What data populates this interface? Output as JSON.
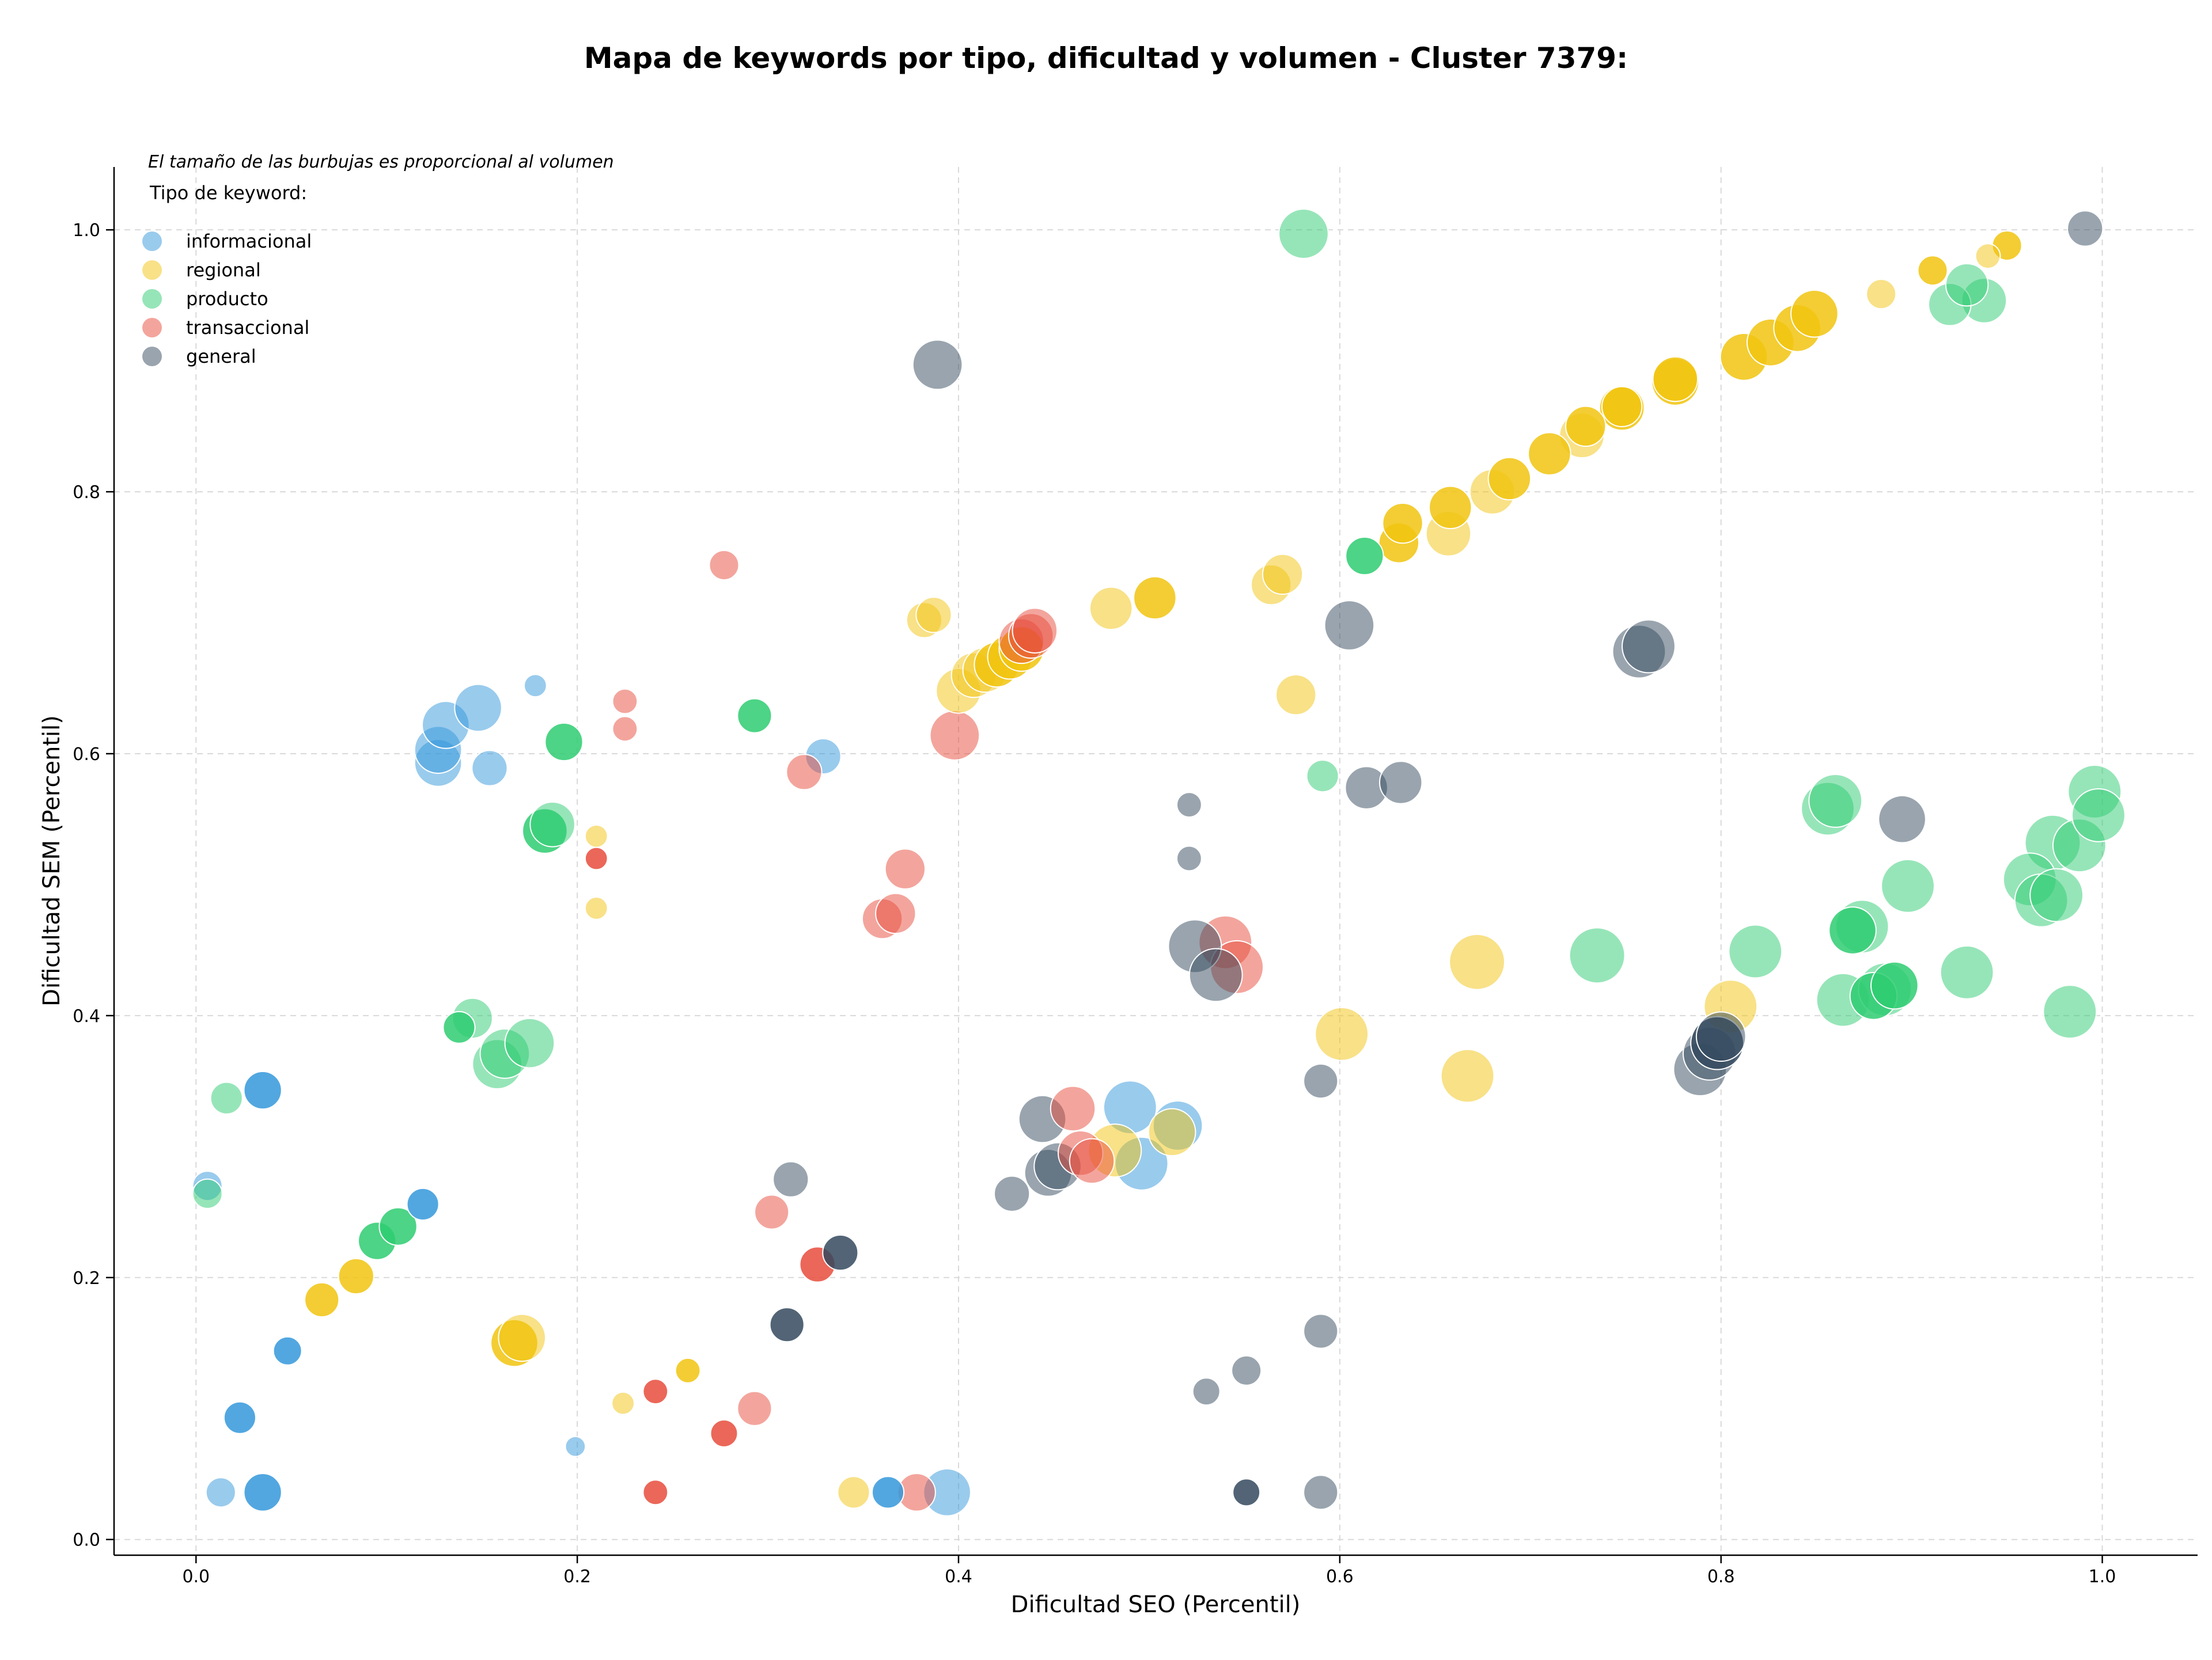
{
  "chart_data": {
    "type": "scatter",
    "title": "Mapa de keywords por tipo, dificultad y volumen - Cluster 7379:",
    "xlabel": "Dificultad SEO (Percentil)",
    "ylabel": "Dificultad SEM (Percentil)",
    "xlim": [
      -0.043,
      1.05
    ],
    "ylim": [
      -0.012,
      1.048
    ],
    "xticks": [
      "0.0",
      "0.2",
      "0.4",
      "0.6",
      "0.8",
      "1.0"
    ],
    "yticks": [
      "0.0",
      "0.2",
      "0.4",
      "0.6",
      "0.8",
      "1.0"
    ],
    "grid": true,
    "note": "El tamaño de las burbujas es proporcional al volumen",
    "legend_title": "Tipo de keyword:",
    "legend_position": "top-left",
    "series": [
      {
        "name": "informacional",
        "color": "#3498db",
        "points": [
          [
            0.006,
            0.27,
            25,
            0.5
          ],
          [
            0.013,
            0.036,
            25,
            0.5
          ],
          [
            0.023,
            0.093,
            27,
            0.85
          ],
          [
            0.035,
            0.036,
            32,
            0.85
          ],
          [
            0.035,
            0.343,
            32,
            0.85
          ],
          [
            0.048,
            0.144,
            24,
            0.85
          ],
          [
            0.119,
            0.256,
            27,
            0.85
          ],
          [
            0.127,
            0.593,
            40,
            0.5
          ],
          [
            0.127,
            0.603,
            40,
            0.5
          ],
          [
            0.131,
            0.622,
            40,
            0.5
          ],
          [
            0.148,
            0.635,
            40,
            0.5
          ],
          [
            0.154,
            0.589,
            30,
            0.5
          ],
          [
            0.178,
            0.652,
            19,
            0.5
          ],
          [
            0.199,
            0.071,
            17,
            0.5
          ],
          [
            0.329,
            0.598,
            30,
            0.5
          ],
          [
            0.363,
            0.036,
            27,
            0.85
          ],
          [
            0.394,
            0.036,
            40,
            0.5
          ],
          [
            0.49,
            0.33,
            45,
            0.5
          ],
          [
            0.496,
            0.287,
            45,
            0.5
          ],
          [
            0.515,
            0.316,
            42,
            0.5
          ]
        ]
      },
      {
        "name": "regional",
        "color": "#f1c40f",
        "points": [
          [
            0.066,
            0.183,
            29,
            0.85
          ],
          [
            0.084,
            0.201,
            30,
            0.85
          ],
          [
            0.167,
            0.15,
            40,
            0.85
          ],
          [
            0.171,
            0.154,
            40,
            0.5
          ],
          [
            0.21,
            0.537,
            19,
            0.5
          ],
          [
            0.21,
            0.482,
            19,
            0.5
          ],
          [
            0.224,
            0.104,
            19,
            0.5
          ],
          [
            0.258,
            0.129,
            21,
            0.85
          ],
          [
            0.345,
            0.036,
            27,
            0.5
          ],
          [
            0.382,
            0.702,
            30,
            0.5
          ],
          [
            0.387,
            0.706,
            30,
            0.5
          ],
          [
            0.4,
            0.648,
            38,
            0.5
          ],
          [
            0.408,
            0.66,
            38,
            0.5
          ],
          [
            0.414,
            0.664,
            38,
            0.5
          ],
          [
            0.42,
            0.668,
            38,
            0.85
          ],
          [
            0.427,
            0.674,
            38,
            0.85
          ],
          [
            0.433,
            0.68,
            38,
            0.85
          ],
          [
            0.482,
            0.297,
            45,
            0.5
          ],
          [
            0.48,
            0.711,
            36,
            0.5
          ],
          [
            0.503,
            0.719,
            36,
            0.85
          ],
          [
            0.512,
            0.311,
            40,
            0.5
          ],
          [
            0.564,
            0.729,
            34,
            0.5
          ],
          [
            0.57,
            0.737,
            34,
            0.5
          ],
          [
            0.577,
            0.645,
            34,
            0.5
          ],
          [
            0.601,
            0.386,
            45,
            0.5
          ],
          [
            0.631,
            0.761,
            34,
            0.85
          ],
          [
            0.633,
            0.776,
            34,
            0.85
          ],
          [
            0.657,
            0.768,
            38,
            0.5
          ],
          [
            0.658,
            0.788,
            36,
            0.85
          ],
          [
            0.667,
            0.354,
            45,
            0.5
          ],
          [
            0.672,
            0.441,
            47,
            0.5
          ],
          [
            0.68,
            0.8,
            38,
            0.5
          ],
          [
            0.689,
            0.81,
            36,
            0.85
          ],
          [
            0.71,
            0.829,
            36,
            0.85
          ],
          [
            0.727,
            0.843,
            38,
            0.5
          ],
          [
            0.729,
            0.85,
            34,
            0.85
          ],
          [
            0.748,
            0.864,
            38,
            0.85
          ],
          [
            0.748,
            0.865,
            34,
            0.85
          ],
          [
            0.776,
            0.884,
            40,
            0.85
          ],
          [
            0.776,
            0.886,
            38,
            0.85
          ],
          [
            0.805,
            0.407,
            45,
            0.5
          ],
          [
            0.812,
            0.903,
            40,
            0.85
          ],
          [
            0.826,
            0.914,
            40,
            0.85
          ],
          [
            0.84,
            0.925,
            40,
            0.85
          ],
          [
            0.849,
            0.936,
            40,
            0.85
          ],
          [
            0.884,
            0.951,
            25,
            0.5
          ],
          [
            0.911,
            0.969,
            25,
            0.85
          ],
          [
            0.94,
            0.98,
            21,
            0.5
          ],
          [
            0.95,
            0.988,
            25,
            0.85
          ]
        ]
      },
      {
        "name": "producto",
        "color": "#2ecc71",
        "points": [
          [
            0.006,
            0.264,
            25,
            0.5
          ],
          [
            0.016,
            0.337,
            27,
            0.5
          ],
          [
            0.095,
            0.228,
            32,
            0.85
          ],
          [
            0.106,
            0.239,
            32,
            0.85
          ],
          [
            0.138,
            0.391,
            27,
            0.85
          ],
          [
            0.145,
            0.398,
            34,
            0.5
          ],
          [
            0.158,
            0.363,
            42,
            0.5
          ],
          [
            0.162,
            0.371,
            42,
            0.5
          ],
          [
            0.175,
            0.379,
            42,
            0.5
          ],
          [
            0.183,
            0.541,
            38,
            0.85
          ],
          [
            0.187,
            0.546,
            38,
            0.5
          ],
          [
            0.193,
            0.609,
            32,
            0.85
          ],
          [
            0.293,
            0.629,
            29,
            0.85
          ],
          [
            0.581,
            0.997,
            42,
            0.5
          ],
          [
            0.591,
            0.583,
            27,
            0.5
          ],
          [
            0.613,
            0.751,
            32,
            0.85
          ],
          [
            0.735,
            0.446,
            47,
            0.5
          ],
          [
            0.818,
            0.449,
            45,
            0.5
          ],
          [
            0.856,
            0.558,
            45,
            0.5
          ],
          [
            0.86,
            0.564,
            45,
            0.5
          ],
          [
            0.864,
            0.412,
            45,
            0.5
          ],
          [
            0.869,
            0.465,
            40,
            0.85
          ],
          [
            0.874,
            0.468,
            45,
            0.5
          ],
          [
            0.88,
            0.415,
            40,
            0.85
          ],
          [
            0.886,
            0.42,
            45,
            0.5
          ],
          [
            0.891,
            0.423,
            40,
            0.85
          ],
          [
            0.898,
            0.499,
            45,
            0.5
          ],
          [
            0.929,
            0.433,
            45,
            0.5
          ],
          [
            0.92,
            0.943,
            36,
            0.5
          ],
          [
            0.929,
            0.958,
            36,
            0.5
          ],
          [
            0.938,
            0.946,
            38,
            0.5
          ],
          [
            0.962,
            0.504,
            45,
            0.5
          ],
          [
            0.968,
            0.488,
            45,
            0.5
          ],
          [
            0.974,
            0.532,
            47,
            0.5
          ],
          [
            0.976,
            0.492,
            45,
            0.5
          ],
          [
            0.983,
            0.403,
            45,
            0.5
          ],
          [
            0.988,
            0.53,
            45,
            0.5
          ],
          [
            0.996,
            0.571,
            45,
            0.5
          ],
          [
            0.998,
            0.553,
            45,
            0.5
          ]
        ]
      },
      {
        "name": "transaccional",
        "color": "#e74c3c",
        "points": [
          [
            0.21,
            0.52,
            19,
            0.85
          ],
          [
            0.225,
            0.64,
            21,
            0.5
          ],
          [
            0.225,
            0.619,
            21,
            0.5
          ],
          [
            0.241,
            0.036,
            21,
            0.85
          ],
          [
            0.241,
            0.113,
            21,
            0.85
          ],
          [
            0.277,
            0.081,
            23,
            0.85
          ],
          [
            0.277,
            0.744,
            25,
            0.5
          ],
          [
            0.293,
            0.1,
            29,
            0.5
          ],
          [
            0.302,
            0.25,
            29,
            0.5
          ],
          [
            0.319,
            0.586,
            30,
            0.5
          ],
          [
            0.326,
            0.21,
            30,
            0.85
          ],
          [
            0.36,
            0.474,
            34,
            0.5
          ],
          [
            0.367,
            0.478,
            34,
            0.5
          ],
          [
            0.372,
            0.512,
            34,
            0.5
          ],
          [
            0.378,
            0.036,
            32,
            0.5
          ],
          [
            0.398,
            0.614,
            42,
            0.5
          ],
          [
            0.433,
            0.686,
            38,
            0.5
          ],
          [
            0.438,
            0.69,
            38,
            0.5
          ],
          [
            0.44,
            0.694,
            38,
            0.5
          ],
          [
            0.46,
            0.329,
            38,
            0.5
          ],
          [
            0.464,
            0.295,
            38,
            0.5
          ],
          [
            0.47,
            0.289,
            38,
            0.5
          ],
          [
            0.54,
            0.456,
            45,
            0.5
          ],
          [
            0.546,
            0.437,
            45,
            0.5
          ]
        ]
      },
      {
        "name": "general",
        "color": "#34495e",
        "points": [
          [
            0.31,
            0.164,
            29,
            0.85
          ],
          [
            0.312,
            0.275,
            30,
            0.5
          ],
          [
            0.338,
            0.219,
            30,
            0.85
          ],
          [
            0.389,
            0.897,
            42,
            0.5
          ],
          [
            0.428,
            0.264,
            30,
            0.5
          ],
          [
            0.444,
            0.321,
            40,
            0.5
          ],
          [
            0.447,
            0.28,
            40,
            0.5
          ],
          [
            0.452,
            0.285,
            40,
            0.5
          ],
          [
            0.521,
            0.561,
            21,
            0.5
          ],
          [
            0.521,
            0.52,
            21,
            0.5
          ],
          [
            0.524,
            0.453,
            45,
            0.5
          ],
          [
            0.53,
            0.113,
            23,
            0.5
          ],
          [
            0.535,
            0.431,
            45,
            0.5
          ],
          [
            0.551,
            0.036,
            23,
            0.85
          ],
          [
            0.551,
            0.129,
            25,
            0.5
          ],
          [
            0.59,
            0.159,
            29,
            0.5
          ],
          [
            0.59,
            0.036,
            29,
            0.5
          ],
          [
            0.59,
            0.35,
            29,
            0.5
          ],
          [
            0.605,
            0.698,
            42,
            0.5
          ],
          [
            0.614,
            0.574,
            36,
            0.5
          ],
          [
            0.632,
            0.578,
            36,
            0.5
          ],
          [
            0.757,
            0.678,
            45,
            0.5
          ],
          [
            0.762,
            0.682,
            45,
            0.5
          ],
          [
            0.789,
            0.359,
            45,
            0.5
          ],
          [
            0.794,
            0.371,
            45,
            0.5
          ],
          [
            0.798,
            0.379,
            45,
            0.85
          ],
          [
            0.8,
            0.384,
            42,
            0.5
          ],
          [
            0.895,
            0.55,
            40,
            0.5
          ],
          [
            0.991,
            1.001,
            30,
            0.5
          ]
        ]
      }
    ]
  }
}
